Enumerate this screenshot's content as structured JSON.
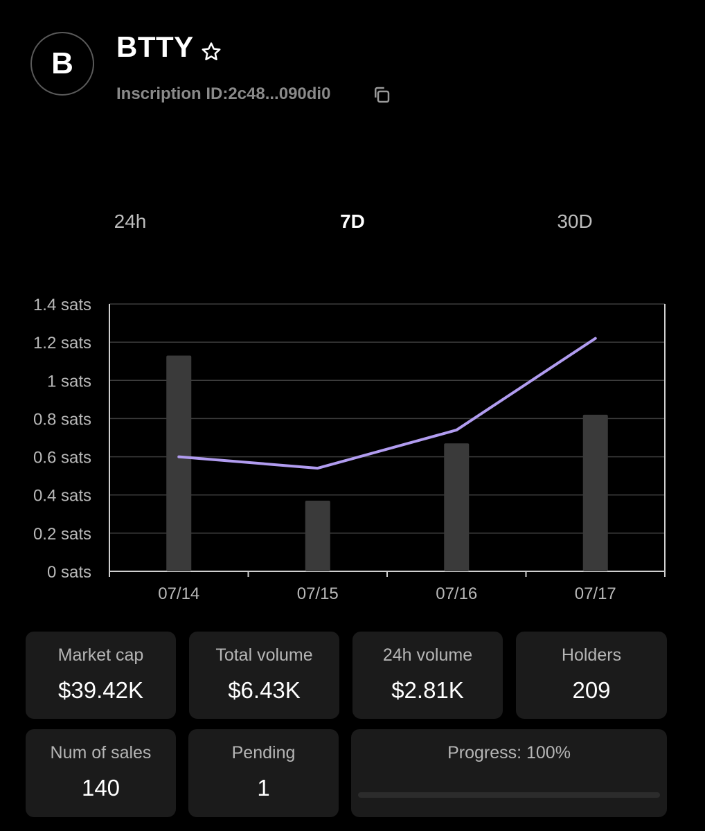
{
  "token": {
    "avatar_letter": "B",
    "name": "BTTY",
    "inscription_label": "Inscription ID:2c48...090di0"
  },
  "icons": [
    "star-icon",
    "copy-icon"
  ],
  "tabs": [
    {
      "label": "24h",
      "active": false
    },
    {
      "label": "7D",
      "active": true
    },
    {
      "label": "30D",
      "active": false
    }
  ],
  "chart_data": {
    "type": "bar",
    "categories": [
      "07/14",
      "07/15",
      "07/16",
      "07/17"
    ],
    "series": [
      {
        "type": "bar",
        "values": [
          1.13,
          0.37,
          0.67,
          0.82
        ],
        "color": "#3a3a3a"
      },
      {
        "type": "line",
        "values": [
          0.6,
          0.54,
          0.74,
          1.22
        ],
        "color": "#b19cf0"
      }
    ],
    "ylim": [
      0,
      1.4
    ],
    "yticks": [
      0,
      0.2,
      0.4,
      0.6,
      0.8,
      1,
      1.2,
      1.4
    ],
    "ytick_labels": [
      "0 sats",
      "0.2 sats",
      "0.4 sats",
      "0.6 sats",
      "0.8 sats",
      "1 sats",
      "1.2 sats",
      "1.4 sats"
    ],
    "grid": true
  },
  "stats": {
    "market_cap": {
      "label": "Market cap",
      "value": "$39.42K"
    },
    "total_volume": {
      "label": "Total volume",
      "value": "$6.43K"
    },
    "volume_24h": {
      "label": "24h volume",
      "value": "$2.81K"
    },
    "holders": {
      "label": "Holders",
      "value": "209"
    },
    "num_sales": {
      "label": "Num of sales",
      "value": "140"
    },
    "pending": {
      "label": "Pending",
      "value": "1"
    },
    "progress": {
      "label": "Progress: 100%",
      "percent": 100
    }
  }
}
